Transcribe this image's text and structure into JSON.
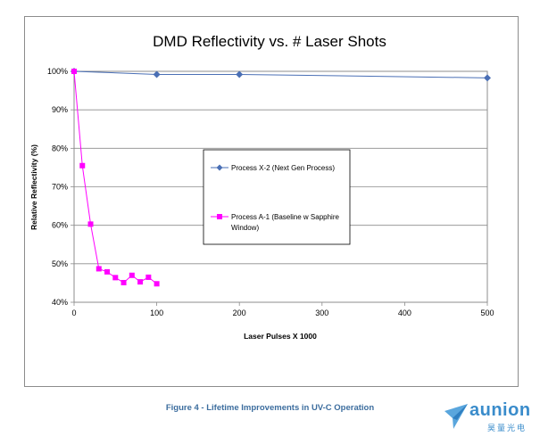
{
  "chart_data": {
    "type": "line",
    "title": "DMD Reflectivity vs. # Laser Shots",
    "xlabel": "Laser Pulses X 1000",
    "ylabel": "Relative Reflectivity (%)",
    "x_axis": {
      "scale": "categorical-spaced",
      "ticks": [
        0,
        100,
        200,
        300,
        400,
        500
      ]
    },
    "ylim": [
      40,
      100
    ],
    "y_ticks": [
      "40%",
      "50%",
      "60%",
      "70%",
      "80%",
      "90%",
      "100%"
    ],
    "grid": "horizontal",
    "legend_placement": "center",
    "series": [
      {
        "name": "Process X-2 (Next Gen Process)",
        "color": "#4a6fb5",
        "marker": "diamond",
        "x": [
          0,
          100,
          200,
          500
        ],
        "y": [
          100,
          99.2,
          99.2,
          98.3
        ]
      },
      {
        "name": "Process A-1 (Baseline w Sapphire Window)",
        "color": "#ff00ff",
        "marker": "square",
        "x": [
          0,
          10,
          20,
          30,
          40,
          50,
          60,
          70,
          80,
          90,
          100
        ],
        "y": [
          100,
          75.5,
          60.3,
          48.7,
          47.9,
          46.4,
          45.1,
          47.0,
          45.3,
          46.5,
          44.8
        ]
      }
    ]
  },
  "caption": "Figure 4 - Lifetime Improvements in UV-C Operation",
  "logo": {
    "name": "aunion",
    "sub": "昊量光电",
    "color": "#3a8ccb",
    "icon": "paper-plane-logo-icon"
  }
}
